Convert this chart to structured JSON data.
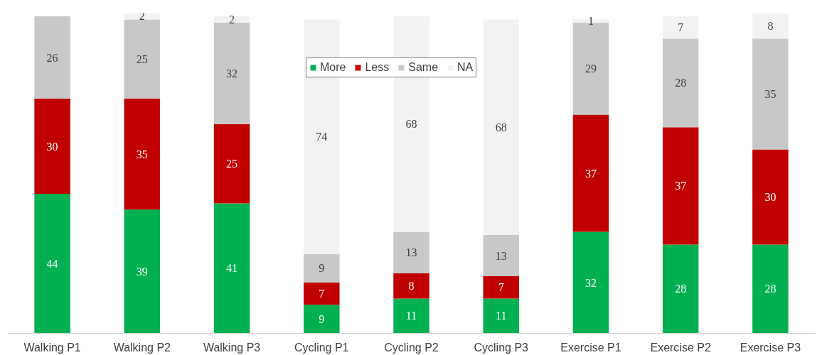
{
  "chart_data": {
    "type": "bar",
    "stacked": true,
    "data_labels": true,
    "legend": "top",
    "grid": false,
    "categories": [
      "Walking P1",
      "Walking P2",
      "Walking P3",
      "Cycling P1",
      "Cycling P2",
      "Cycling P3",
      "Exercise P1",
      "Exercise P2",
      "Exercise P3"
    ],
    "series": [
      {
        "name": "More",
        "color": "#00b050",
        "values": [
          44,
          39,
          41,
          9,
          11,
          11,
          32,
          28,
          28
        ]
      },
      {
        "name": "Less",
        "color": "#c00000",
        "values": [
          30,
          35,
          25,
          7,
          8,
          7,
          37,
          37,
          30
        ]
      },
      {
        "name": "Same",
        "color": "#c8c8c8",
        "values": [
          26,
          25,
          32,
          9,
          13,
          13,
          29,
          28,
          35
        ]
      },
      {
        "name": "NA",
        "color": "#f2f2f2",
        "values": [
          null,
          2,
          2,
          74,
          68,
          68,
          1,
          7,
          8
        ]
      }
    ]
  }
}
